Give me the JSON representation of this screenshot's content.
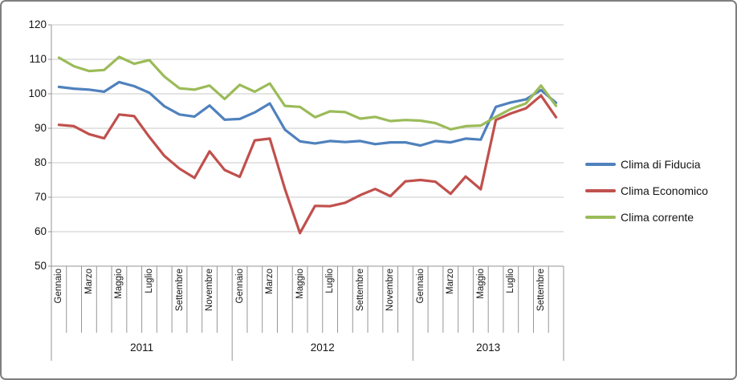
{
  "chart_data": {
    "type": "line",
    "title": "",
    "grid": true,
    "legend_position": "right",
    "y_axis": {
      "min": 50,
      "max": 120,
      "step": 10,
      "ticks": [
        120,
        110,
        100,
        90,
        80,
        70,
        60,
        50
      ]
    },
    "x_axis": {
      "years": [
        {
          "label": "2011",
          "n_months": 12,
          "tick_labels": [
            "Gennaio",
            "Marzo",
            "Maggio",
            "Luglio",
            "Settembre",
            "Novembre"
          ]
        },
        {
          "label": "2012",
          "n_months": 12,
          "tick_labels": [
            "Gennaio",
            "Marzo",
            "Maggio",
            "Luglio",
            "Settembre",
            "Novembre"
          ]
        },
        {
          "label": "2013",
          "n_months": 10,
          "tick_labels": [
            "Gennaio",
            "Marzo",
            "Maggio",
            "Luglio",
            "Settembre"
          ]
        }
      ]
    },
    "series": [
      {
        "name": "Clima di Fiducia",
        "color": "#4F81BD",
        "values": [
          102.0,
          101.5,
          101.2,
          100.6,
          103.4,
          102.2,
          100.3,
          96.4,
          94.0,
          93.4,
          96.6,
          92.5,
          92.7,
          94.6,
          97.2,
          89.6,
          86.2,
          85.6,
          86.3,
          86.0,
          86.3,
          85.4,
          85.9,
          85.9,
          85.0,
          86.3,
          85.9,
          87.0,
          86.7,
          96.2,
          97.5,
          98.4,
          101.1,
          97.4
        ]
      },
      {
        "name": "Clima Economico",
        "color": "#C0504D",
        "values": [
          91.0,
          90.6,
          88.3,
          87.1,
          94.0,
          93.5,
          87.5,
          82.0,
          78.3,
          75.6,
          83.3,
          77.9,
          75.9,
          86.5,
          87.0,
          72.4,
          59.6,
          67.5,
          67.4,
          68.4,
          70.6,
          72.4,
          70.3,
          74.6,
          75.0,
          74.5,
          71.0,
          76.0,
          72.3,
          92.4,
          94.3,
          95.8,
          99.5,
          93.2
        ]
      },
      {
        "name": "Clima corrente",
        "color": "#9BBB59",
        "values": [
          110.5,
          108.0,
          106.6,
          106.9,
          110.7,
          108.7,
          109.8,
          105.0,
          101.6,
          101.2,
          102.4,
          98.5,
          102.6,
          100.6,
          103.0,
          96.5,
          96.2,
          93.2,
          94.9,
          94.7,
          92.8,
          93.3,
          92.1,
          92.4,
          92.2,
          91.5,
          89.7,
          90.6,
          90.8,
          93.3,
          95.6,
          97.2,
          102.4,
          96.5
        ]
      }
    ],
    "colors": {
      "gridline": "#C9C9C9",
      "axis": "#969696",
      "text": "#141414"
    }
  }
}
